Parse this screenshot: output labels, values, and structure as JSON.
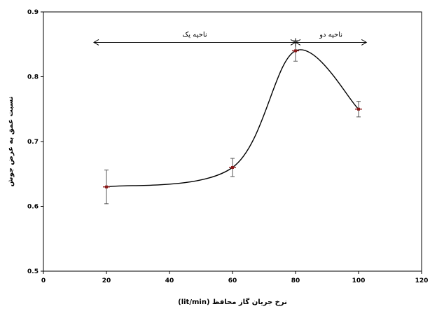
{
  "chart_data": {
    "type": "line",
    "title": "",
    "xlabel": "نرخ جریان گاز محافظ (lit/min)",
    "ylabel": "نسبت عمق به عرض جوش",
    "xlim": [
      0,
      120
    ],
    "ylim": [
      0.5,
      0.9
    ],
    "x_ticks": [
      "0",
      "20",
      "40",
      "60",
      "80",
      "100",
      "120"
    ],
    "y_ticks": [
      "0.5",
      "0.6",
      "0.7",
      "0.8",
      "0.9"
    ],
    "grid": false,
    "series": [
      {
        "x": [
          20,
          60,
          80,
          100
        ],
        "y": [
          0.63,
          0.66,
          0.84,
          0.75
        ],
        "error": [
          0.026,
          0.014,
          0.016,
          0.012
        ],
        "smooth": true,
        "color": "#000000",
        "marker_color": "#8b1a1a"
      }
    ],
    "annotations": [
      {
        "label": "ناحیه یک",
        "x_start": 16,
        "x_end": 80,
        "y": 0.853
      },
      {
        "label": "ناحیه دو",
        "x_start": 80,
        "x_end": 102.5,
        "y": 0.853
      }
    ]
  }
}
